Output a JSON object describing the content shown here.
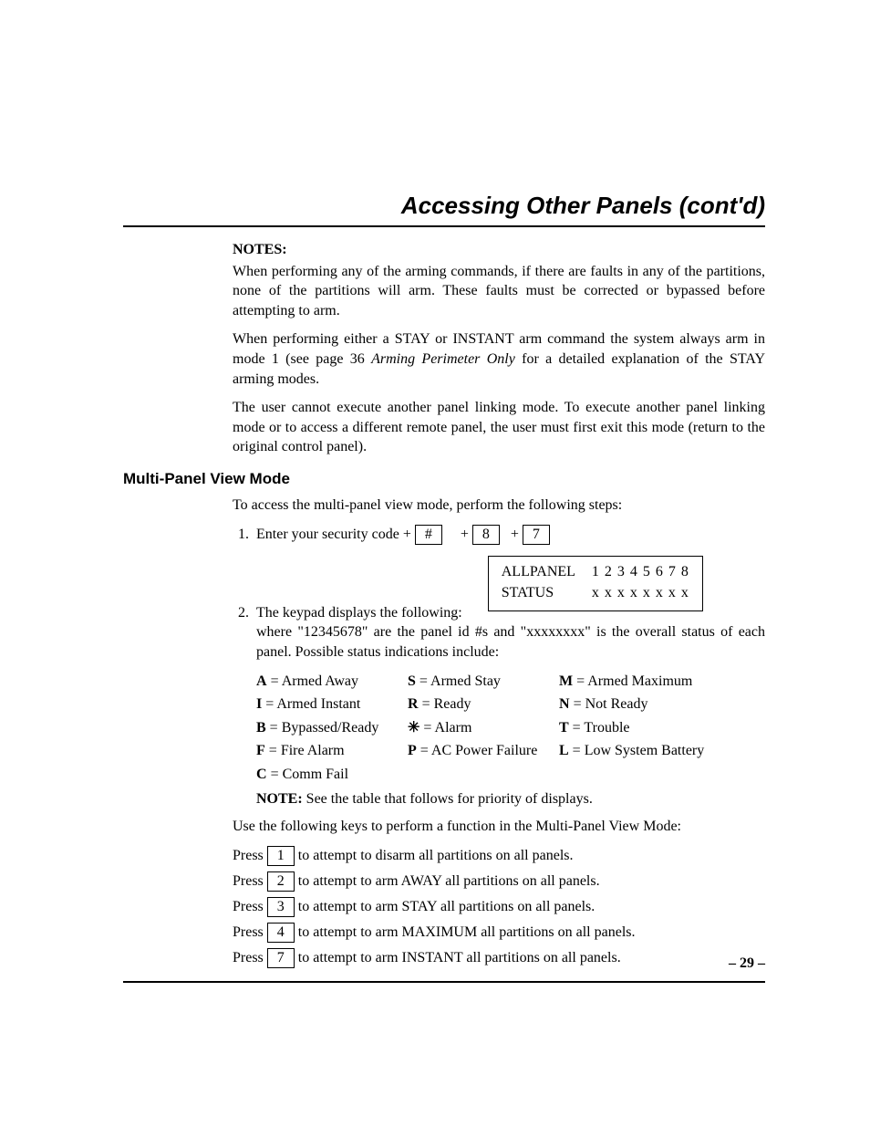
{
  "title": "Accessing Other Panels (cont'd)",
  "notes_label": "NOTES:",
  "note_paras": [
    "When performing any of the arming commands, if there are faults in any of the partitions, none of the partitions will arm. These faults must be corrected or bypassed before attempting to arm.",
    "When performing either a STAY or INSTANT arm command the system always arm in mode 1 (see page 36 Arming Perimeter Only for a detailed explanation of the STAY arming modes.",
    "The user cannot execute another panel linking mode. To execute another panel linking mode or to access a different remote panel, the user must first exit this mode (return to the original control panel)."
  ],
  "section_heading": "Multi-Panel View Mode",
  "intro_line": "To access the multi-panel view mode, perform the following steps:",
  "step1": {
    "prefix": "Enter your security code + ",
    "keys": [
      "#",
      "8",
      "7"
    ],
    "plus": " + "
  },
  "step2_text": "The keypad displays the following:",
  "display": {
    "row1_label": "ALLPANEL",
    "row1_value": "1 2 3 4 5 6 7 8",
    "row2_label": "STATUS",
    "row2_value": "x x x x x x x x"
  },
  "where_line": "where \"12345678\" are the panel id #s and \"xxxxxxxx\" is the overall status of each panel. Possible status indications include:",
  "status_codes": [
    {
      "code": "A",
      "label": "Armed Away"
    },
    {
      "code": "S",
      "label": "Armed Stay"
    },
    {
      "code": "M",
      "label": "Armed Maximum"
    },
    {
      "code": "I",
      "label": "Armed Instant"
    },
    {
      "code": "R",
      "label": "Ready"
    },
    {
      "code": "N",
      "label": "Not Ready"
    },
    {
      "code": "B",
      "label": "Bypassed/Ready"
    },
    {
      "code": "✳",
      "label": "Alarm"
    },
    {
      "code": "T",
      "label": "Trouble"
    },
    {
      "code": "F",
      "label": "Fire Alarm"
    },
    {
      "code": "P",
      "label": "AC Power Failure"
    },
    {
      "code": "L",
      "label": "Low System Battery"
    },
    {
      "code": "C",
      "label": "Comm Fail"
    }
  ],
  "note_bold": "NOTE:",
  "note_rest": " See the table that follows for priority of displays.",
  "use_keys_line": "Use the following keys to perform a function in the Multi-Panel View Mode:",
  "press_word": "Press ",
  "press_keys": [
    {
      "key": "1",
      "action": " to attempt to disarm all partitions on all panels."
    },
    {
      "key": "2",
      "action": " to attempt to arm AWAY all partitions on all panels."
    },
    {
      "key": "3",
      "action": " to attempt to arm STAY all partitions on all panels."
    },
    {
      "key": "4",
      "action": " to attempt to arm MAXIMUM all partitions on all panels."
    },
    {
      "key": "7",
      "action": " to attempt to arm INSTANT all partitions on all panels."
    }
  ],
  "page_number": "– 29 –"
}
